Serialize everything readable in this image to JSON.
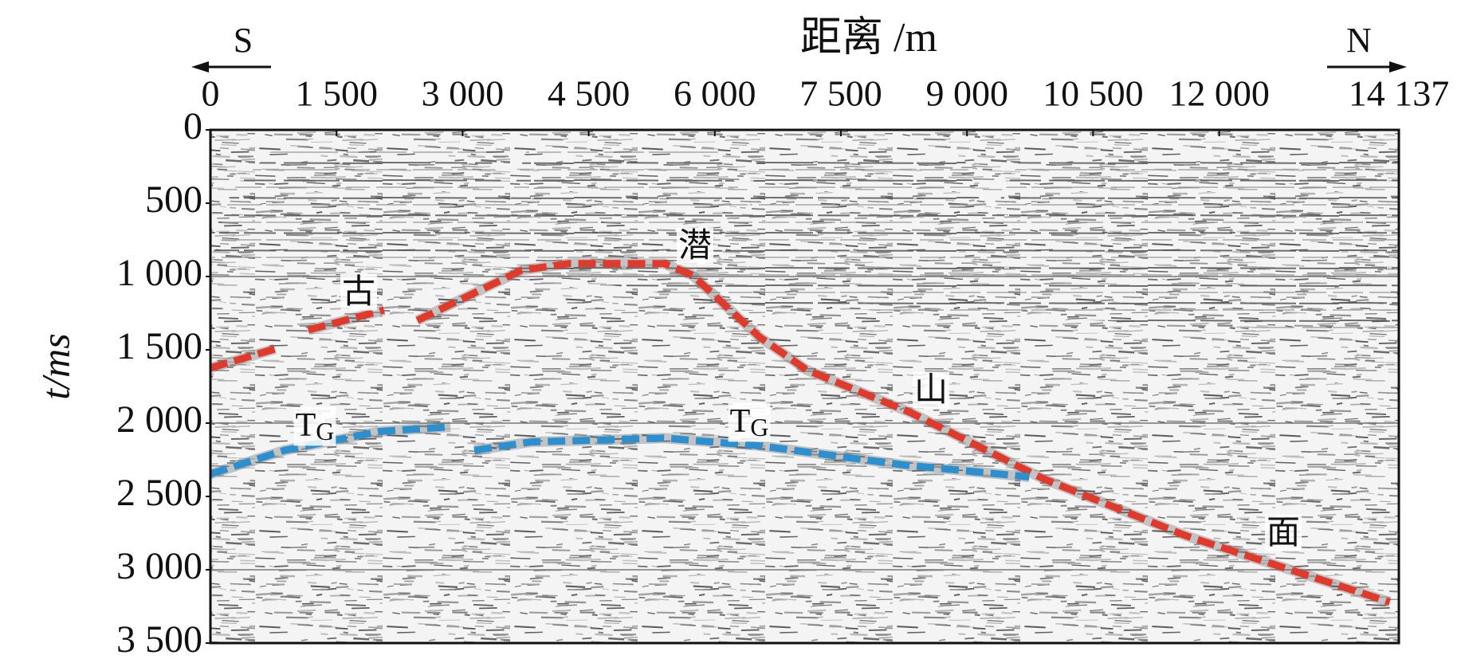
{
  "chart_data": {
    "type": "line",
    "title": "距离 /m",
    "y_label": "t/ms",
    "direction_labels": [
      "S",
      "N"
    ],
    "xlim": [
      0,
      14137
    ],
    "xticks": [
      0,
      {
        "value": 1500,
        "label": "1 500"
      },
      {
        "value": 3000,
        "label": "3 000"
      },
      {
        "value": 4500,
        "label": "4 500"
      },
      {
        "value": 6000,
        "label": "6 000"
      },
      {
        "value": 7500,
        "label": "7 500"
      },
      {
        "value": 9000,
        "label": "9 000"
      },
      {
        "value": 10500,
        "label": "10 500"
      },
      {
        "value": 12000,
        "label": "12 000"
      },
      {
        "value": 14137,
        "label": "14 137"
      }
    ],
    "ylim": [
      0,
      3500
    ],
    "y_inverted": true,
    "yticks": [
      0,
      500,
      {
        "value": 1000,
        "label": "1 000"
      },
      {
        "value": 1500,
        "label": "1 500"
      },
      {
        "value": 2000,
        "label": "2 000"
      },
      {
        "value": 2500,
        "label": "2 500"
      },
      {
        "value": 3000,
        "label": "3 000"
      },
      {
        "value": 3500,
        "label": "3 500"
      }
    ],
    "grid_lines": [
      1000,
      2000,
      3000
    ],
    "series": [
      {
        "color": "#e03a2c",
        "dashed": true,
        "x": [
          0,
          767,
          null,
          1163,
          2065,
          null,
          2460,
          3702,
          4266,
          5395,
          5734,
          6524,
          7088,
          8330,
          9910,
          11603,
          14029
        ],
        "values": [
          1624,
          1494,
          null,
          1365,
          1229,
          null,
          1300,
          957,
          912,
          912,
          990,
          1410,
          1636,
          1928,
          2380,
          2768,
          3221
        ]
      },
      {
        "color": "#2e8fcf",
        "dashed": true,
        "x": [
          0,
          880,
          2009,
          2856,
          null,
          3138,
          3815,
          5395,
          6524,
          8217,
          9740
        ],
        "values": [
          2348,
          2186,
          2057,
          2025,
          null,
          2186,
          2128,
          2102,
          2154,
          2283,
          2367
        ]
      }
    ],
    "annotations": [
      {
        "text": "古"
      },
      {
        "text": "潜"
      },
      {
        "text": "山"
      },
      {
        "text": "面"
      },
      {
        "text": "T",
        "sub": "G"
      },
      {
        "text": "T",
        "sub": "G"
      }
    ]
  }
}
